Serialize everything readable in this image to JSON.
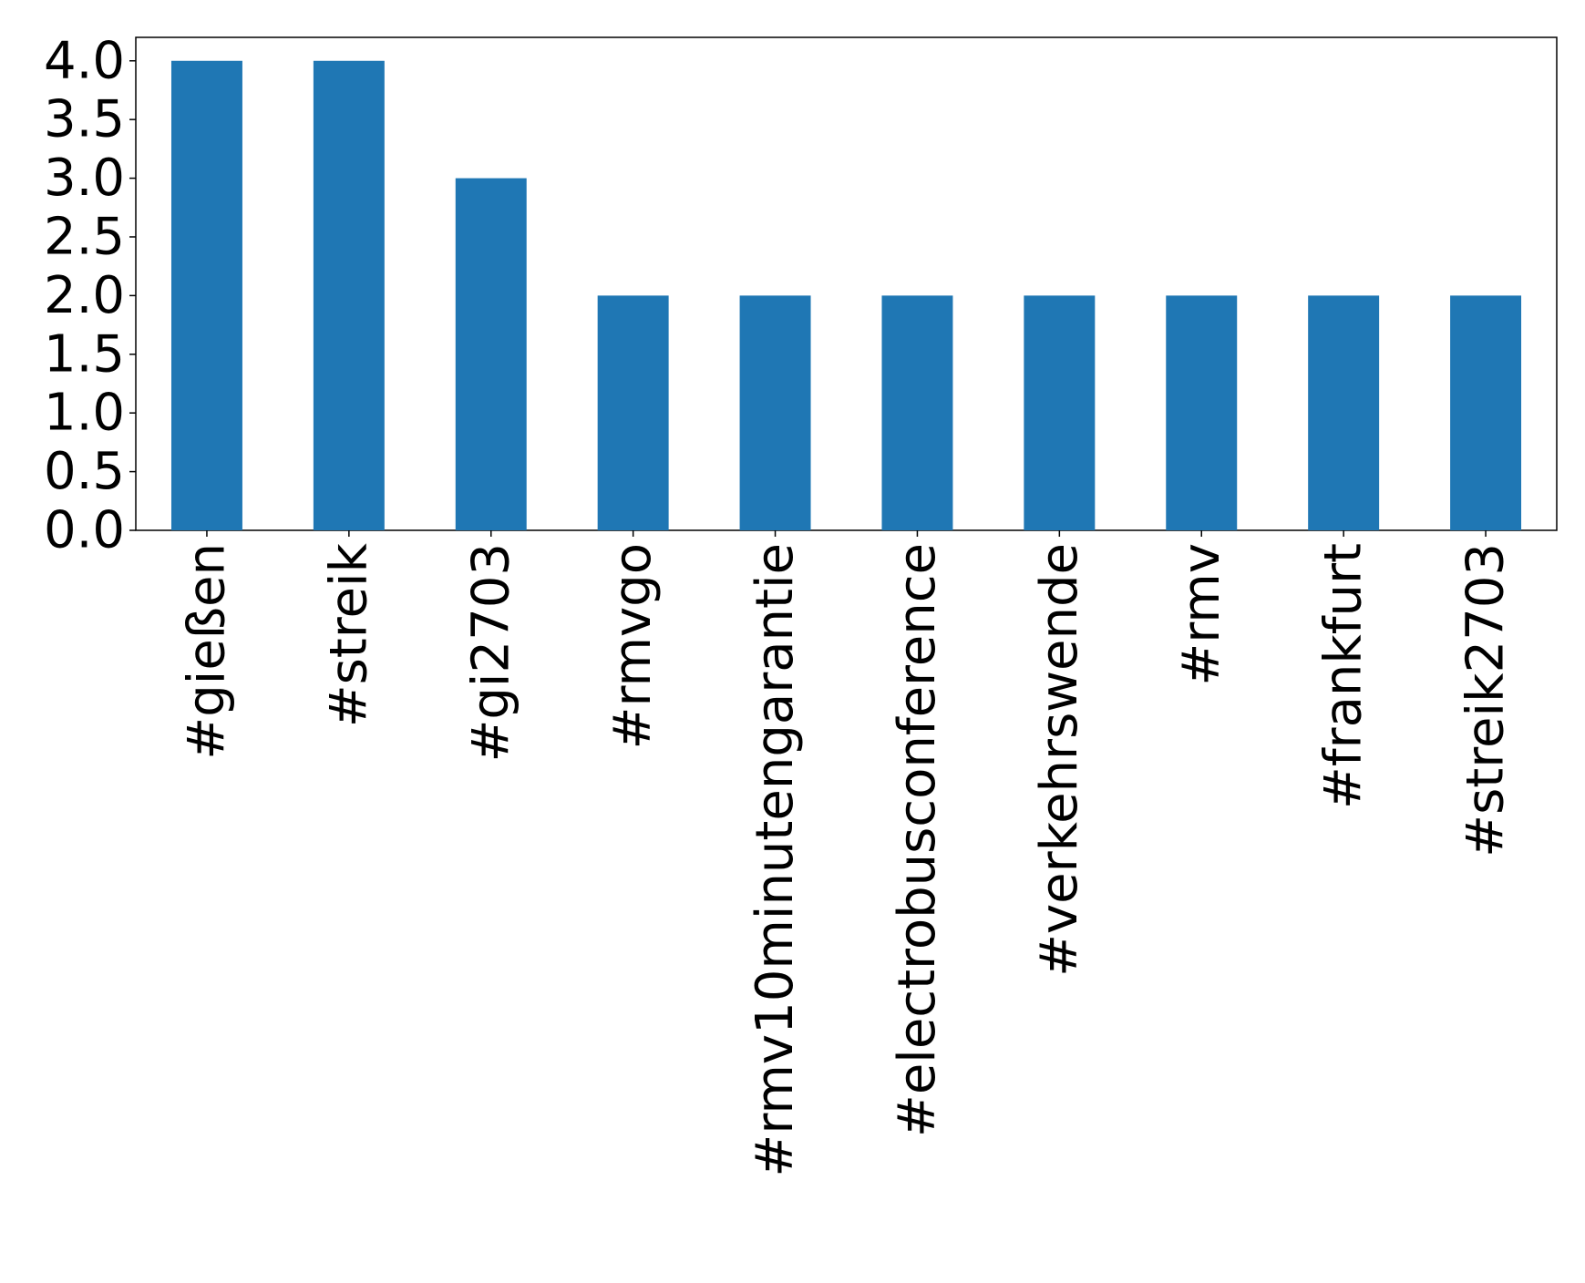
{
  "chart_data": {
    "type": "bar",
    "categories": [
      "#gießen",
      "#streik",
      "#gi2703",
      "#rmvgo",
      "#rmv10minutengarantie",
      "#electrobusconference",
      "#verkehrswende",
      "#rmv",
      "#frankfurt",
      "#streik2703"
    ],
    "values": [
      4,
      4,
      3,
      2,
      2,
      2,
      2,
      2,
      2,
      2
    ],
    "color": "#1f77b4",
    "ylim": [
      0,
      4.2
    ],
    "yticks": [
      {
        "value": 0,
        "label": "0.0"
      },
      0.5,
      {
        "value": 1,
        "label": "1.0"
      },
      1.5,
      {
        "value": 2,
        "label": "2.0"
      },
      2.5,
      {
        "value": 3,
        "label": "3.0"
      },
      3.5,
      {
        "value": 4,
        "label": "4.0"
      }
    ],
    "grid": false
  }
}
